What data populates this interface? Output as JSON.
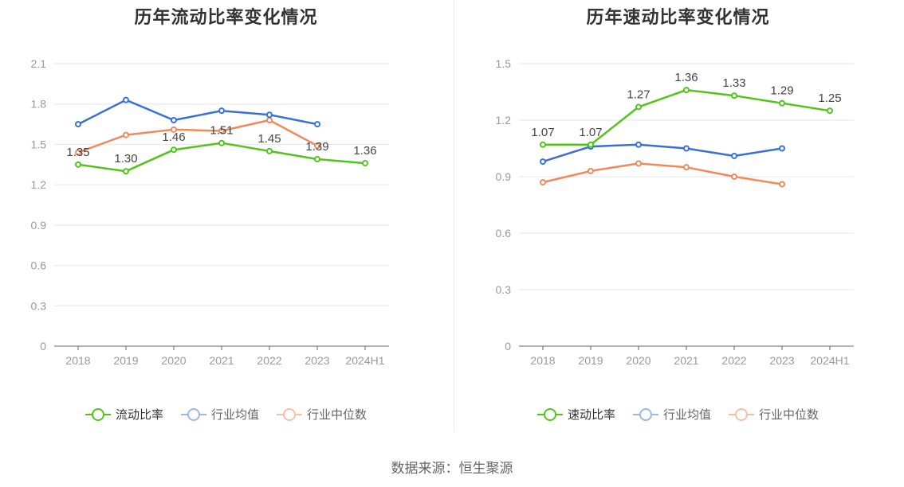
{
  "source": "数据来源：恒生聚源",
  "chart_data": [
    {
      "type": "line",
      "title": "历年流动比率变化情况",
      "categories": [
        "2018",
        "2019",
        "2020",
        "2021",
        "2022",
        "2023",
        "2024H1"
      ],
      "yticks": [
        "0",
        "0.3",
        "0.6",
        "0.9",
        "1.2",
        "1.5",
        "1.8",
        "2.1"
      ],
      "ylim": [
        0,
        2.1
      ],
      "grid": true,
      "legend_placement": "bottom",
      "series": [
        {
          "name": "流动比率",
          "color": "#52c41a",
          "values": [
            1.35,
            1.3,
            1.46,
            1.51,
            1.45,
            1.39,
            1.36
          ],
          "labels": [
            "1.35",
            "1.30",
            "1.46",
            "1.51",
            "1.45",
            "1.39",
            "1.36"
          ]
        },
        {
          "name": "行业均值",
          "color": "#3b6fd8",
          "values": [
            1.65,
            1.83,
            1.68,
            1.75,
            1.72,
            1.65,
            null
          ]
        },
        {
          "name": "行业中位数",
          "color": "#f08a5d",
          "values": [
            1.44,
            1.57,
            1.61,
            1.6,
            1.68,
            1.49,
            null
          ]
        }
      ]
    },
    {
      "type": "line",
      "title": "历年速动比率变化情况",
      "categories": [
        "2018",
        "2019",
        "2020",
        "2021",
        "2022",
        "2023",
        "2024H1"
      ],
      "yticks": [
        "0",
        "0.3",
        "0.6",
        "0.9",
        "1.2",
        "1.5"
      ],
      "ylim": [
        0,
        1.5
      ],
      "grid": true,
      "legend_placement": "bottom",
      "series": [
        {
          "name": "速动比率",
          "color": "#52c41a",
          "values": [
            1.07,
            1.07,
            1.27,
            1.36,
            1.33,
            1.29,
            1.25
          ],
          "labels": [
            "1.07",
            "1.07",
            "1.27",
            "1.36",
            "1.33",
            "1.29",
            "1.25"
          ]
        },
        {
          "name": "行业均值",
          "color": "#3b6fd8",
          "values": [
            0.98,
            1.06,
            1.07,
            1.05,
            1.01,
            1.05,
            null
          ]
        },
        {
          "name": "行业中位数",
          "color": "#f08a5d",
          "values": [
            0.87,
            0.93,
            0.97,
            0.95,
            0.9,
            0.86,
            null
          ]
        }
      ]
    }
  ]
}
